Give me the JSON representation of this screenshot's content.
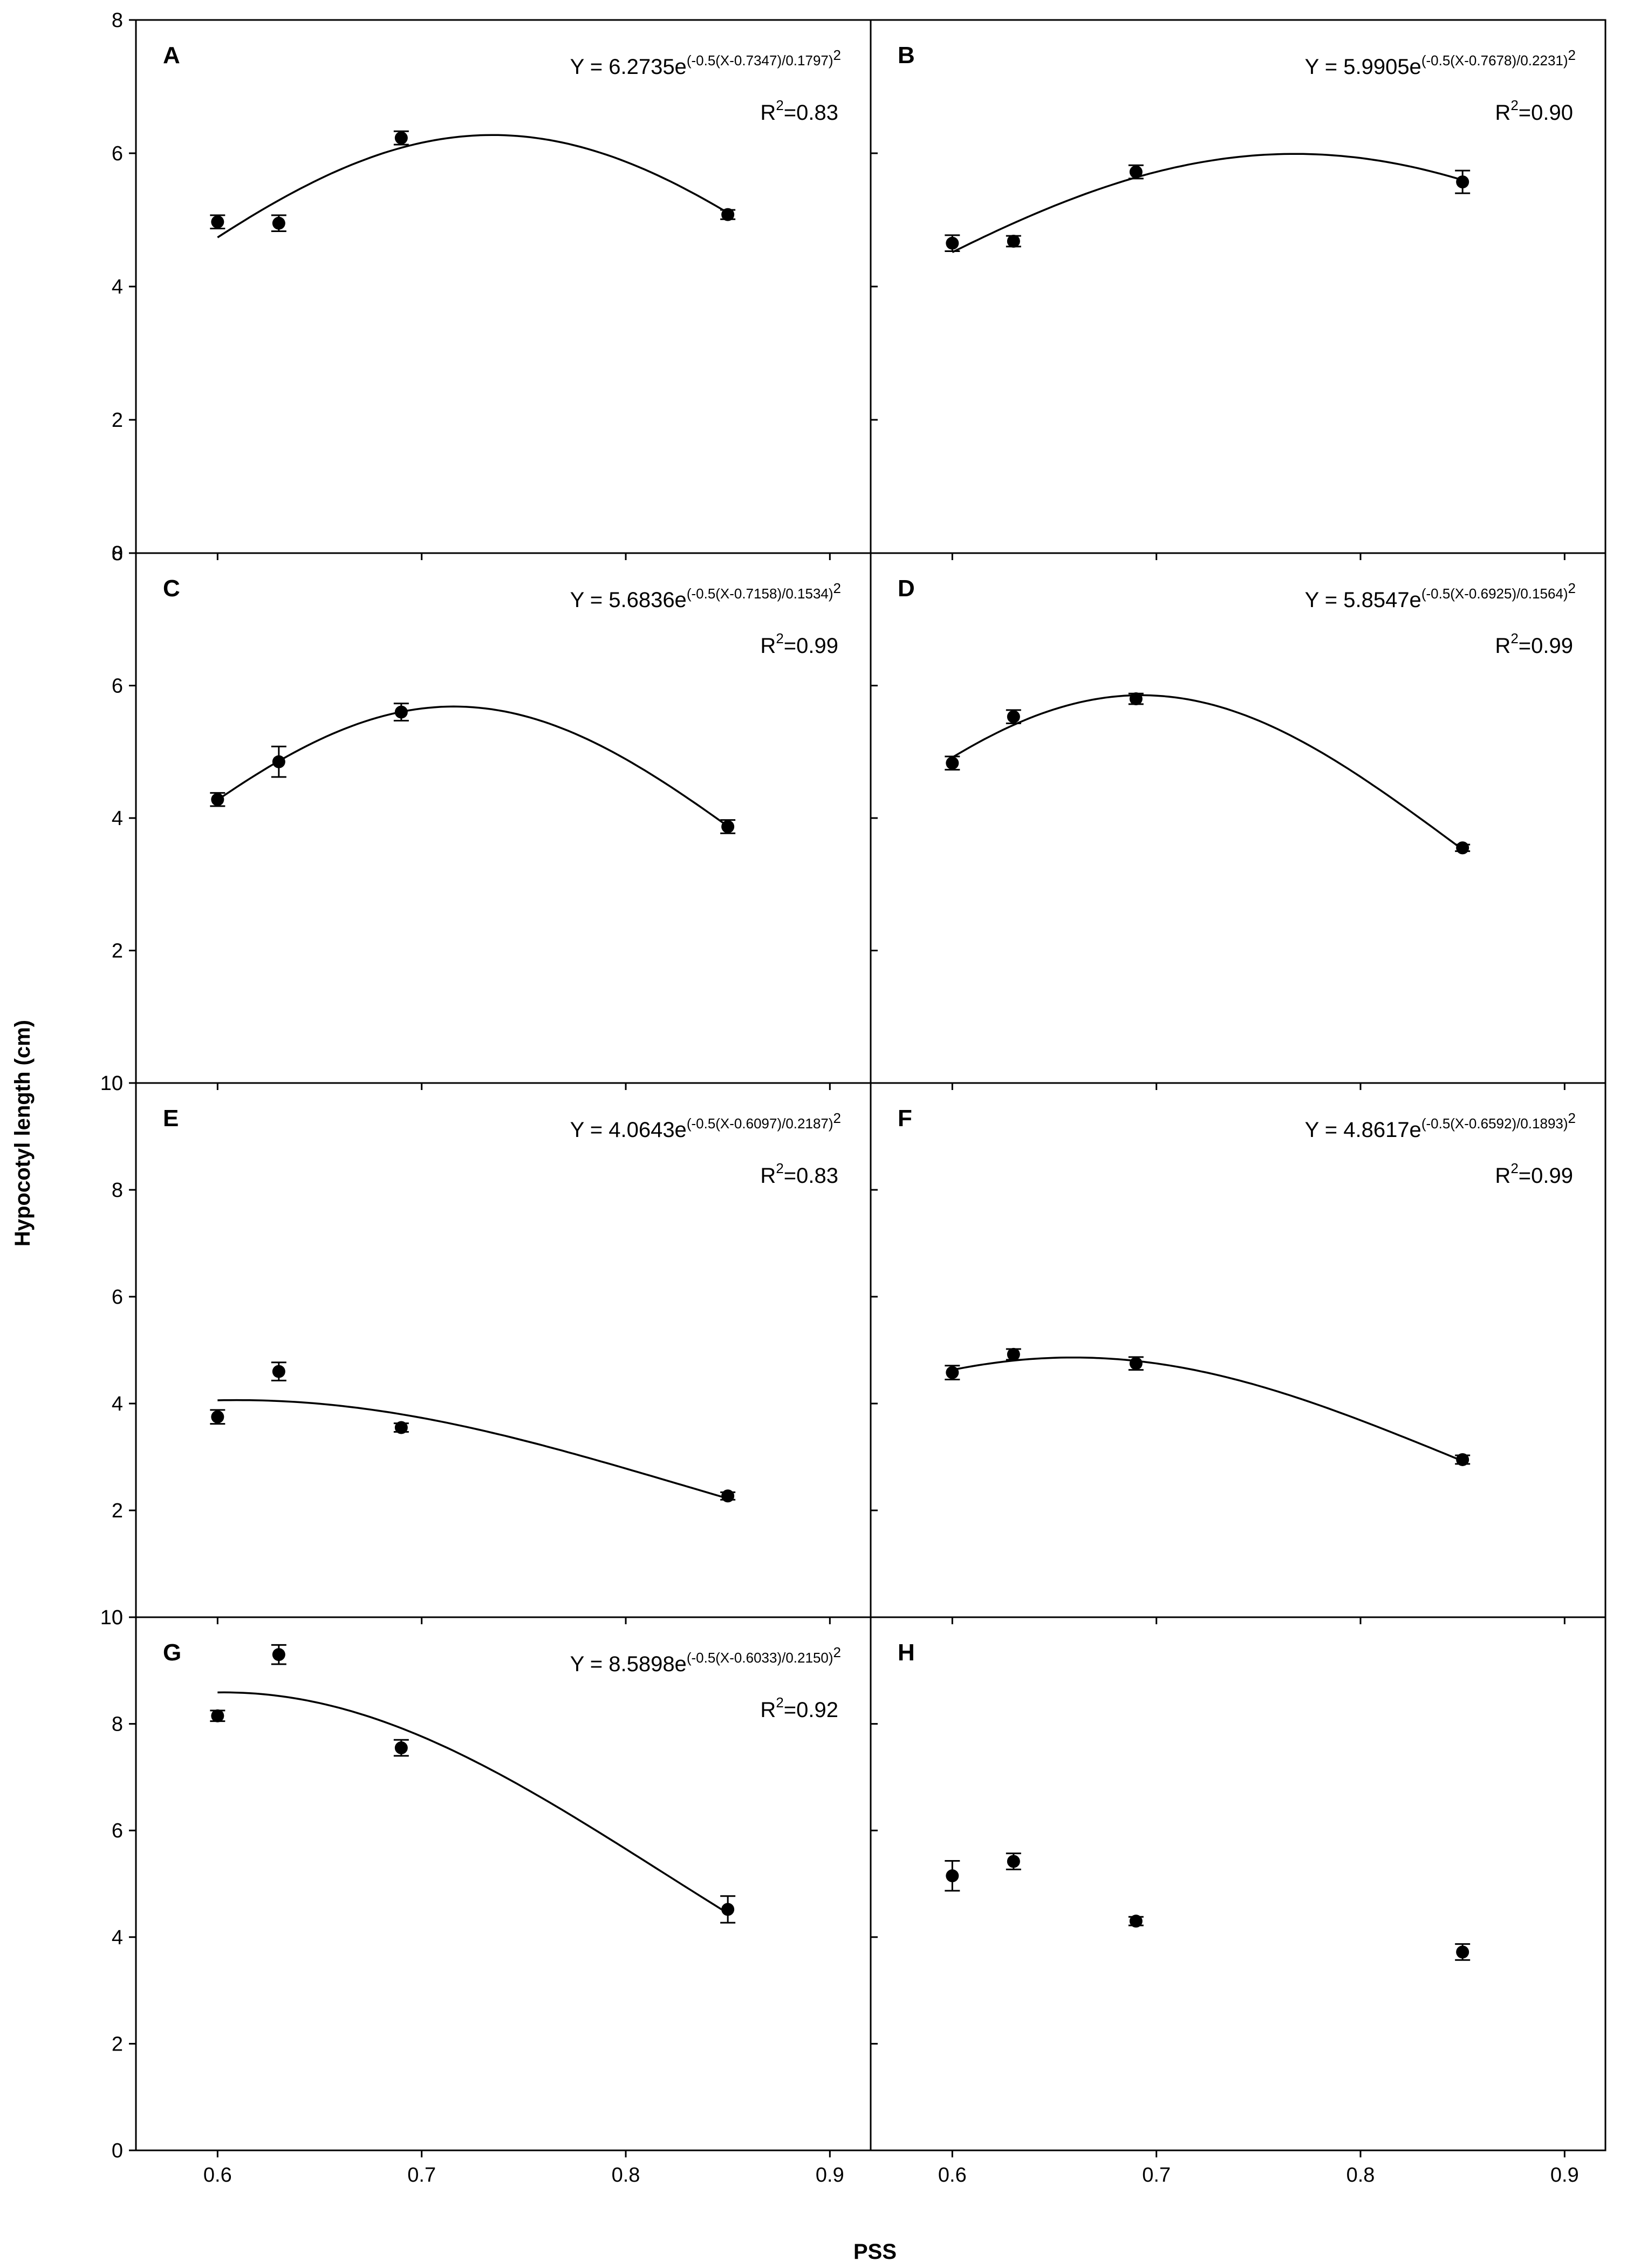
{
  "chart_data": {
    "type": "scatter",
    "ylabel": "Hypocotyl length (cm)",
    "xlabel": "PSS",
    "xlim": [
      0.56,
      0.92
    ],
    "xticks": [
      0.6,
      0.7,
      0.8,
      0.9
    ],
    "xtick_labels": [
      "0.6",
      "0.7",
      "0.8",
      "0.9"
    ],
    "panels": [
      {
        "letter": "A",
        "ylim": [
          0,
          8
        ],
        "yticks": [
          0,
          2,
          4,
          6,
          8
        ],
        "points": [
          {
            "x": 0.6,
            "y": 4.97,
            "err": 0.1
          },
          {
            "x": 0.63,
            "y": 4.95,
            "err": 0.12
          },
          {
            "x": 0.69,
            "y": 6.23,
            "err": 0.1
          },
          {
            "x": 0.85,
            "y": 5.08,
            "err": 0.07
          }
        ],
        "fit": {
          "a": 6.2735,
          "x0": 0.7347,
          "b": 0.1797,
          "x_from": 0.6,
          "x_to": 0.85
        },
        "equation": {
          "base": "Y = 6.2735e",
          "exponent": "(-0.5(X-0.7347)/0.1797)",
          "exponent_power": "2"
        },
        "r2": {
          "prefix": "R",
          "sup": "2",
          "value": "=0.83"
        }
      },
      {
        "letter": "B",
        "ylim": [
          0,
          8
        ],
        "yticks": [
          0,
          2,
          4,
          6,
          8
        ],
        "points": [
          {
            "x": 0.6,
            "y": 4.65,
            "err": 0.12
          },
          {
            "x": 0.63,
            "y": 4.68,
            "err": 0.08
          },
          {
            "x": 0.69,
            "y": 5.72,
            "err": 0.1
          },
          {
            "x": 0.85,
            "y": 5.57,
            "err": 0.17
          }
        ],
        "fit": {
          "a": 5.9905,
          "x0": 0.7678,
          "b": 0.2231,
          "x_from": 0.6,
          "x_to": 0.85
        },
        "equation": {
          "base": "Y = 5.9905e",
          "exponent": "(-0.5(X-0.7678)/0.2231)",
          "exponent_power": "2"
        },
        "r2": {
          "prefix": "R",
          "sup": "2",
          "value": "=0.90"
        }
      },
      {
        "letter": "C",
        "ylim": [
          0,
          8
        ],
        "yticks": [
          0,
          2,
          4,
          6,
          8
        ],
        "points": [
          {
            "x": 0.6,
            "y": 4.28,
            "err": 0.1
          },
          {
            "x": 0.63,
            "y": 4.85,
            "err": 0.23
          },
          {
            "x": 0.69,
            "y": 5.6,
            "err": 0.13
          },
          {
            "x": 0.85,
            "y": 3.87,
            "err": 0.1
          }
        ],
        "fit": {
          "a": 5.6836,
          "x0": 0.7158,
          "b": 0.1534,
          "x_from": 0.6,
          "x_to": 0.85
        },
        "equation": {
          "base": "Y = 5.6836e",
          "exponent": "(-0.5(X-0.7158)/0.1534)",
          "exponent_power": "2"
        },
        "r2": {
          "prefix": "R",
          "sup": "2",
          "value": "=0.99"
        }
      },
      {
        "letter": "D",
        "ylim": [
          0,
          8
        ],
        "yticks": [
          0,
          2,
          4,
          6,
          8
        ],
        "points": [
          {
            "x": 0.6,
            "y": 4.83,
            "err": 0.1
          },
          {
            "x": 0.63,
            "y": 5.53,
            "err": 0.1
          },
          {
            "x": 0.69,
            "y": 5.8,
            "err": 0.08
          },
          {
            "x": 0.85,
            "y": 3.55,
            "err": 0.05
          }
        ],
        "fit": {
          "a": 5.8547,
          "x0": 0.6925,
          "b": 0.1564,
          "x_from": 0.6,
          "x_to": 0.85
        },
        "equation": {
          "base": "Y = 5.8547e",
          "exponent": "(-0.5(X-0.6925)/0.1564)",
          "exponent_power": "2"
        },
        "r2": {
          "prefix": "R",
          "sup": "2",
          "value": "=0.99"
        }
      },
      {
        "letter": "E",
        "ylim": [
          0,
          10
        ],
        "yticks": [
          0,
          2,
          4,
          6,
          8,
          10
        ],
        "points": [
          {
            "x": 0.6,
            "y": 3.75,
            "err": 0.13
          },
          {
            "x": 0.63,
            "y": 4.6,
            "err": 0.17
          },
          {
            "x": 0.69,
            "y": 3.55,
            "err": 0.08
          },
          {
            "x": 0.85,
            "y": 2.27,
            "err": 0.07
          }
        ],
        "fit": {
          "a": 4.0643,
          "x0": 0.6097,
          "b": 0.2187,
          "x_from": 0.6,
          "x_to": 0.85
        },
        "equation": {
          "base": "Y = 4.0643e",
          "exponent": "(-0.5(X-0.6097)/0.2187)",
          "exponent_power": "2"
        },
        "r2": {
          "prefix": "R",
          "sup": "2",
          "value": "=0.83"
        }
      },
      {
        "letter": "F",
        "ylim": [
          0,
          10
        ],
        "yticks": [
          0,
          2,
          4,
          6,
          8,
          10
        ],
        "points": [
          {
            "x": 0.6,
            "y": 4.58,
            "err": 0.13
          },
          {
            "x": 0.63,
            "y": 4.92,
            "err": 0.1
          },
          {
            "x": 0.69,
            "y": 4.75,
            "err": 0.12
          },
          {
            "x": 0.85,
            "y": 2.95,
            "err": 0.08
          }
        ],
        "fit": {
          "a": 4.8617,
          "x0": 0.6592,
          "b": 0.1893,
          "x_from": 0.6,
          "x_to": 0.85
        },
        "equation": {
          "base": "Y = 4.8617e",
          "exponent": "(-0.5(X-0.6592)/0.1893)",
          "exponent_power": "2"
        },
        "r2": {
          "prefix": "R",
          "sup": "2",
          "value": "=0.99"
        }
      },
      {
        "letter": "G",
        "ylim": [
          0,
          10
        ],
        "yticks": [
          0,
          2,
          4,
          6,
          8,
          10
        ],
        "points": [
          {
            "x": 0.6,
            "y": 8.15,
            "err": 0.1
          },
          {
            "x": 0.63,
            "y": 9.3,
            "err": 0.18
          },
          {
            "x": 0.69,
            "y": 7.55,
            "err": 0.15
          },
          {
            "x": 0.85,
            "y": 4.52,
            "err": 0.25
          }
        ],
        "fit": {
          "a": 8.5898,
          "x0": 0.6033,
          "b": 0.215,
          "x_from": 0.6,
          "x_to": 0.85
        },
        "equation": {
          "base": "Y = 8.5898e",
          "exponent": "(-0.5(X-0.6033)/0.2150)",
          "exponent_power": "2"
        },
        "r2": {
          "prefix": "R",
          "sup": "2",
          "value": "=0.92"
        }
      },
      {
        "letter": "H",
        "ylim": [
          0,
          10
        ],
        "yticks": [
          0,
          2,
          4,
          6,
          8,
          10
        ],
        "points": [
          {
            "x": 0.6,
            "y": 5.15,
            "err": 0.28
          },
          {
            "x": 0.63,
            "y": 5.42,
            "err": 0.15
          },
          {
            "x": 0.69,
            "y": 4.3,
            "err": 0.08
          },
          {
            "x": 0.85,
            "y": 3.72,
            "err": 0.15
          }
        ]
      }
    ]
  }
}
